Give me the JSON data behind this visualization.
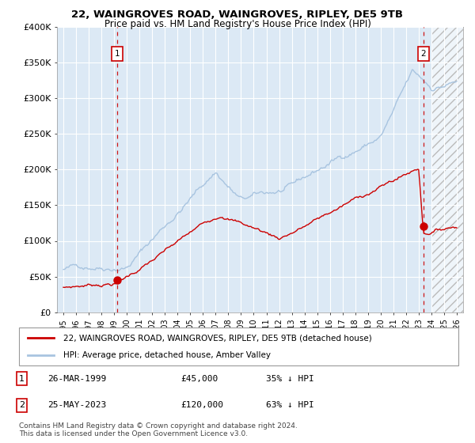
{
  "title1": "22, WAINGROVES ROAD, WAINGROVES, RIPLEY, DE5 9TB",
  "title2": "Price paid vs. HM Land Registry's House Price Index (HPI)",
  "ylim": [
    0,
    400000
  ],
  "yticks": [
    0,
    50000,
    100000,
    150000,
    200000,
    250000,
    300000,
    350000,
    400000
  ],
  "ytick_labels": [
    "£0",
    "£50K",
    "£100K",
    "£150K",
    "£200K",
    "£250K",
    "£300K",
    "£350K",
    "£400K"
  ],
  "xlim_start": 1994.5,
  "xlim_end": 2026.5,
  "hpi_color": "#a8c4e0",
  "price_color": "#cc0000",
  "bg_color": "#dce9f5",
  "grid_color": "#ffffff",
  "marker1_year": 1999.23,
  "marker1_price": 45000,
  "marker2_year": 2023.38,
  "marker2_price": 120000,
  "hatch_start": 2024.0,
  "legend_label1": "22, WAINGROVES ROAD, WAINGROVES, RIPLEY, DE5 9TB (detached house)",
  "legend_label2": "HPI: Average price, detached house, Amber Valley",
  "note1_label": "1",
  "note1_date": "26-MAR-1999",
  "note1_price": "£45,000",
  "note1_pct": "35% ↓ HPI",
  "note2_label": "2",
  "note2_date": "25-MAY-2023",
  "note2_price": "£120,000",
  "note2_pct": "63% ↓ HPI",
  "footer": "Contains HM Land Registry data © Crown copyright and database right 2024.\nThis data is licensed under the Open Government Licence v3.0."
}
